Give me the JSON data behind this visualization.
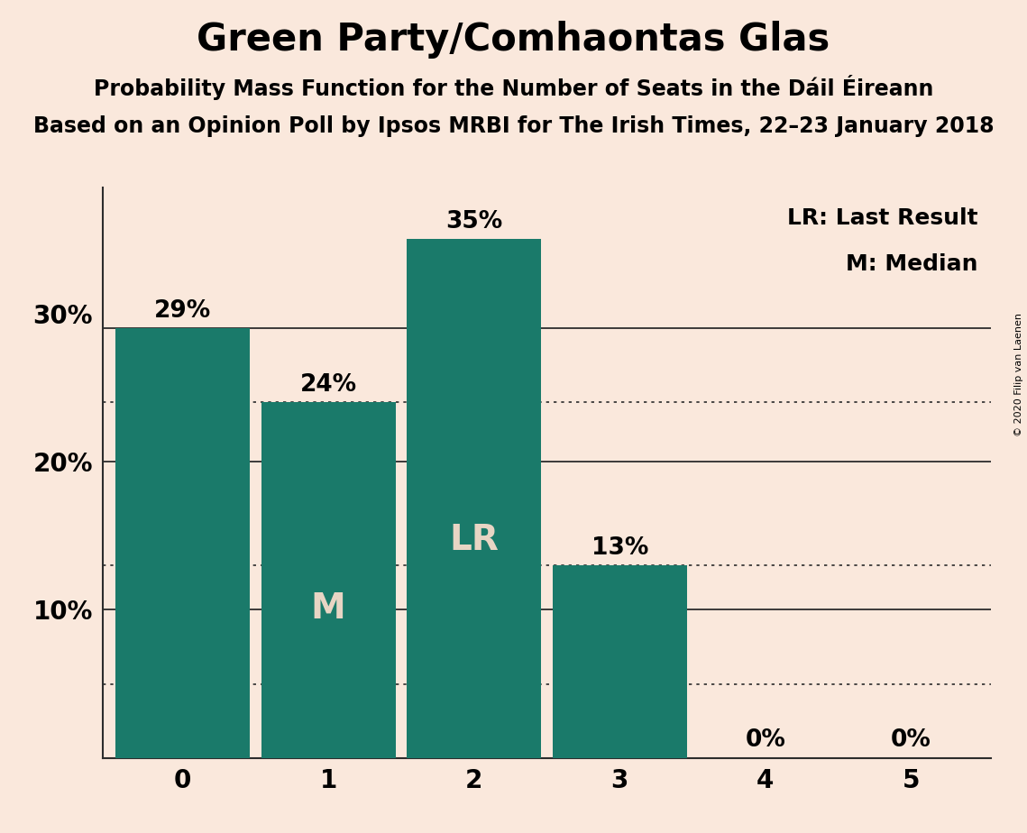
{
  "title": "Green Party/Comhaontas Glas",
  "subtitle1": "Probability Mass Function for the Number of Seats in the Dáil Éireann",
  "subtitle2": "Based on an Opinion Poll by Ipsos MRBI for The Irish Times, 22–23 January 2018",
  "copyright": "© 2020 Filip van Laenen",
  "categories": [
    0,
    1,
    2,
    3,
    4,
    5
  ],
  "values": [
    0.29,
    0.24,
    0.35,
    0.13,
    0.0,
    0.0
  ],
  "bar_color": "#1A7A6A",
  "background_color": "#FAE8DC",
  "bar_labels": [
    "29%",
    "24%",
    "35%",
    "13%",
    "0%",
    "0%"
  ],
  "bar_inside_labels": [
    "",
    "M",
    "LR",
    "",
    "",
    ""
  ],
  "inside_label_color": "#E8D5C4",
  "ylim": [
    0,
    0.385
  ],
  "yticks": [
    0.1,
    0.2,
    0.3
  ],
  "ytick_labels": [
    "10%",
    "20%",
    "30%"
  ],
  "legend_lr": "LR: Last Result",
  "legend_m": "M: Median",
  "solid_lines": [
    0.29,
    0.2,
    0.1
  ],
  "dotted_lines": [
    0.24,
    0.13,
    0.05
  ],
  "title_fontsize": 30,
  "subtitle_fontsize": 17,
  "label_fontsize": 19,
  "inside_label_fontsize": 28,
  "axis_fontsize": 20,
  "legend_fontsize": 18
}
